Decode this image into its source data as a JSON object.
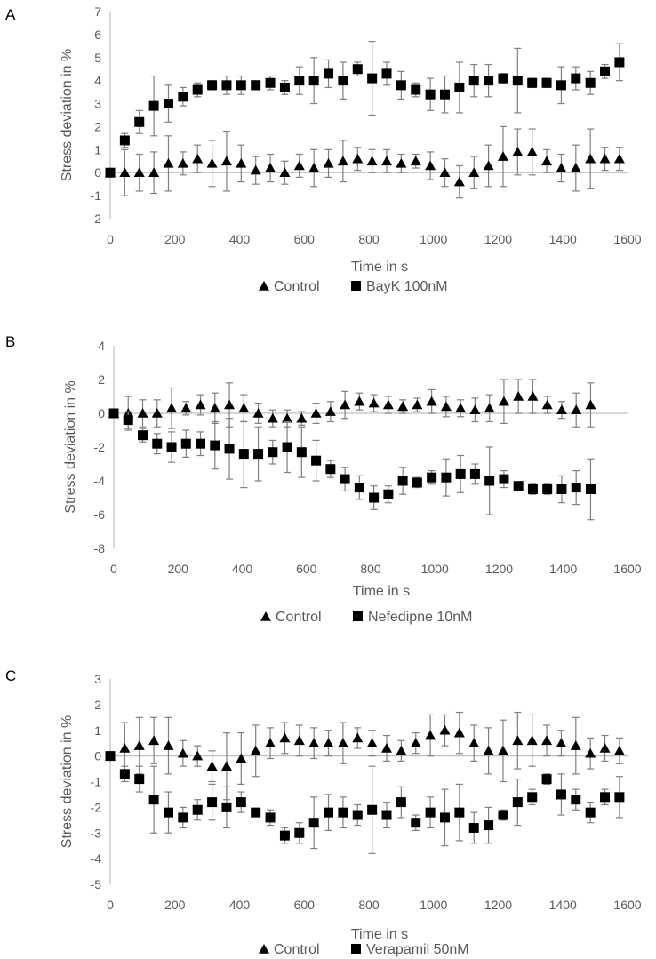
{
  "figure": {
    "panels": [
      {
        "letter": "A",
        "legend": {
          "control": "Control",
          "treatment": "BayK 100nM"
        }
      },
      {
        "letter": "B",
        "legend": {
          "control": "Control",
          "treatment": "Nefedipne 10nM"
        }
      },
      {
        "letter": "C",
        "legend": {
          "control": "Control",
          "treatment": "Verapamil 50nM"
        }
      }
    ]
  },
  "colors": {
    "marker": "#000000",
    "axis": "#bfbfbf",
    "text": "#595959",
    "error_bar": "#7f7f7f"
  },
  "chart_data": [
    {
      "type": "scatter",
      "panel": "A",
      "xlabel": "Time in s",
      "ylabel": "Stress deviation in %",
      "xlim": [
        0,
        1600
      ],
      "ylim": [
        -2,
        7
      ],
      "xticks": [
        0,
        200,
        400,
        600,
        800,
        1000,
        1200,
        1400,
        1600
      ],
      "yticks": [
        -2,
        -1,
        0,
        1,
        2,
        3,
        4,
        5,
        6,
        7
      ],
      "legend_position": "bottom",
      "series": [
        {
          "name": "Control",
          "marker": "triangle",
          "x": [
            0,
            45,
            90,
            135,
            180,
            225,
            270,
            315,
            360,
            405,
            450,
            495,
            540,
            585,
            630,
            675,
            720,
            765,
            810,
            855,
            900,
            945,
            990,
            1035,
            1080,
            1125,
            1170,
            1215,
            1260,
            1305,
            1350,
            1395,
            1440,
            1485,
            1530,
            1575
          ],
          "y": [
            0,
            0,
            0,
            0,
            0.4,
            0.4,
            0.6,
            0.4,
            0.5,
            0.4,
            0.1,
            0.2,
            0,
            0.3,
            0.2,
            0.4,
            0.5,
            0.6,
            0.5,
            0.5,
            0.4,
            0.5,
            0.3,
            0,
            -0.4,
            0,
            0.3,
            0.7,
            0.9,
            0.9,
            0.5,
            0.2,
            0.2,
            0.6,
            0.6,
            0.6
          ],
          "err": [
            0,
            1,
            0.8,
            0.9,
            1.2,
            0.5,
            0.6,
            1,
            1.3,
            0.8,
            0.6,
            0.6,
            0.5,
            0.5,
            0.8,
            0.6,
            0.9,
            0.5,
            0.5,
            0.5,
            0.4,
            0.3,
            0.6,
            0.6,
            0.7,
            0.7,
            0.9,
            1.3,
            1,
            1,
            0.5,
            0.6,
            1,
            1.3,
            0.5,
            0.5
          ]
        },
        {
          "name": "BayK 100nM",
          "marker": "square",
          "x": [
            0,
            45,
            90,
            135,
            180,
            225,
            270,
            315,
            360,
            405,
            450,
            495,
            540,
            585,
            630,
            675,
            720,
            765,
            810,
            855,
            900,
            945,
            990,
            1035,
            1080,
            1125,
            1170,
            1215,
            1260,
            1305,
            1350,
            1395,
            1440,
            1485,
            1530,
            1575
          ],
          "y": [
            0,
            1.4,
            2.2,
            2.9,
            3,
            3.3,
            3.6,
            3.8,
            3.8,
            3.8,
            3.8,
            3.9,
            3.7,
            4,
            4,
            4.3,
            4,
            4.5,
            4.1,
            4.3,
            3.8,
            3.6,
            3.4,
            3.4,
            3.7,
            4,
            4,
            4.1,
            4,
            3.9,
            3.9,
            3.8,
            4.1,
            3.9,
            4.4,
            4.8
          ],
          "err": [
            0,
            0.3,
            0.5,
            1.3,
            0.8,
            0.4,
            0.3,
            0.2,
            0.4,
            0.4,
            0.2,
            0.3,
            0.3,
            0.6,
            1,
            0.6,
            0.8,
            0.3,
            1.6,
            0.5,
            0.6,
            0.3,
            0.7,
            0.8,
            1.1,
            0.7,
            0.7,
            0.2,
            1.4,
            0.2,
            0.2,
            0.8,
            0.5,
            0.5,
            0.3,
            0.8
          ]
        }
      ]
    },
    {
      "type": "scatter",
      "panel": "B",
      "xlabel": "Time in s",
      "ylabel": "Stress deviation in %",
      "xlim": [
        0,
        1600
      ],
      "ylim": [
        -8,
        4
      ],
      "xticks": [
        0,
        200,
        400,
        600,
        800,
        1000,
        1200,
        1400,
        1600
      ],
      "yticks": [
        -8,
        -6,
        -4,
        -2,
        0,
        2,
        4
      ],
      "legend_position": "bottom",
      "series": [
        {
          "name": "Control",
          "marker": "triangle",
          "x": [
            0,
            45,
            90,
            135,
            180,
            225,
            270,
            315,
            360,
            405,
            450,
            495,
            540,
            585,
            630,
            675,
            720,
            765,
            810,
            855,
            900,
            945,
            990,
            1035,
            1080,
            1125,
            1170,
            1215,
            1260,
            1305,
            1350,
            1395,
            1440,
            1485
          ],
          "y": [
            0,
            0,
            0,
            0,
            0.3,
            0.3,
            0.5,
            0.3,
            0.5,
            0.3,
            0,
            -0.3,
            -0.3,
            -0.3,
            0,
            0.1,
            0.5,
            0.7,
            0.6,
            0.5,
            0.4,
            0.5,
            0.7,
            0.4,
            0.3,
            0.2,
            0.3,
            0.7,
            1,
            1,
            0.5,
            0.2,
            0.2,
            0.5
          ],
          "err": [
            0,
            1,
            0.8,
            0.8,
            1.2,
            0.4,
            0.6,
            0.9,
            1.3,
            0.8,
            0.6,
            0.5,
            0.5,
            0.4,
            0.6,
            0.6,
            0.8,
            0.5,
            0.5,
            0.5,
            0.4,
            0.4,
            0.7,
            0.6,
            0.5,
            0.7,
            0.8,
            1.3,
            1,
            1,
            0.5,
            0.5,
            1,
            1.3
          ]
        },
        {
          "name": "Nefedipne 10nM",
          "marker": "square",
          "x": [
            0,
            45,
            90,
            135,
            180,
            225,
            270,
            315,
            360,
            405,
            450,
            495,
            540,
            585,
            630,
            675,
            720,
            765,
            810,
            855,
            900,
            945,
            990,
            1035,
            1080,
            1125,
            1170,
            1215,
            1260,
            1305,
            1350,
            1395,
            1440,
            1485
          ],
          "y": [
            0,
            -0.4,
            -1.3,
            -1.8,
            -2,
            -1.8,
            -1.8,
            -1.9,
            -2.1,
            -2.4,
            -2.4,
            -2.3,
            -2,
            -2.3,
            -2.8,
            -3.3,
            -3.9,
            -4.4,
            -5,
            -4.8,
            -4,
            -4.1,
            -3.8,
            -3.8,
            -3.6,
            -3.6,
            -4,
            -3.9,
            -4.3,
            -4.5,
            -4.5,
            -4.5,
            -4.4,
            -4.5
          ],
          "err": [
            0,
            0.5,
            0.4,
            0.6,
            0.9,
            0.8,
            0.7,
            1.4,
            1.8,
            2,
            1.6,
            0.7,
            1.5,
            1.5,
            1.2,
            0.5,
            0.7,
            0.7,
            0.7,
            0.5,
            0.8,
            0.3,
            0.4,
            1.1,
            1.1,
            0.6,
            2,
            0.5,
            0.2,
            0.3,
            0.3,
            0.8,
            1,
            1.8
          ]
        }
      ]
    },
    {
      "type": "scatter",
      "panel": "C",
      "xlabel": "Time in s",
      "ylabel": "Stress deviation in %",
      "xlim": [
        0,
        1600
      ],
      "ylim": [
        -5,
        3
      ],
      "xticks": [
        0,
        200,
        400,
        600,
        800,
        1000,
        1200,
        1400,
        1600
      ],
      "yticks": [
        -5,
        -4,
        -3,
        -2,
        -1,
        0,
        1,
        2,
        3
      ],
      "legend_position": "bottom",
      "series": [
        {
          "name": "Control",
          "marker": "triangle",
          "x": [
            0,
            45,
            90,
            135,
            180,
            225,
            270,
            315,
            360,
            405,
            450,
            495,
            540,
            585,
            630,
            675,
            720,
            765,
            810,
            855,
            900,
            945,
            990,
            1035,
            1080,
            1125,
            1170,
            1215,
            1260,
            1305,
            1350,
            1395,
            1440,
            1485,
            1530,
            1575
          ],
          "y": [
            0,
            0.3,
            0.4,
            0.6,
            0.4,
            0.1,
            0,
            -0.4,
            -0.4,
            -0.1,
            0.2,
            0.5,
            0.7,
            0.6,
            0.5,
            0.5,
            0.5,
            0.7,
            0.5,
            0.3,
            0.2,
            0.5,
            0.8,
            1,
            0.9,
            0.5,
            0.2,
            0.2,
            0.6,
            0.6,
            0.6,
            0.5,
            0.4,
            0.1,
            0.3,
            0.2
          ],
          "err": [
            0,
            1,
            1.1,
            0.9,
            1.1,
            0.5,
            0.4,
            0.6,
            1.3,
            1,
            1,
            0.6,
            0.6,
            0.6,
            0.6,
            0.5,
            0.8,
            0.4,
            0.5,
            0.5,
            0.4,
            0.4,
            0.8,
            0.6,
            0.8,
            0.7,
            0.9,
            1.2,
            1.1,
            1,
            0.6,
            0.5,
            1.1,
            0.6,
            0.5,
            0.5
          ]
        },
        {
          "name": "Verapamil 50nM",
          "marker": "square",
          "x": [
            0,
            45,
            90,
            135,
            180,
            225,
            270,
            315,
            360,
            405,
            450,
            495,
            540,
            585,
            630,
            675,
            720,
            765,
            810,
            855,
            900,
            945,
            990,
            1035,
            1080,
            1125,
            1170,
            1215,
            1260,
            1305,
            1350,
            1395,
            1440,
            1485,
            1530,
            1575
          ],
          "y": [
            0,
            -0.7,
            -0.9,
            -1.7,
            -2.2,
            -2.4,
            -2.1,
            -1.8,
            -2,
            -1.8,
            -2.2,
            -2.4,
            -3.1,
            -3,
            -2.6,
            -2.2,
            -2.2,
            -2.3,
            -2.1,
            -2.3,
            -1.8,
            -2.6,
            -2.2,
            -2.4,
            -2.2,
            -2.8,
            -2.7,
            -2.3,
            -1.8,
            -1.6,
            -0.9,
            -1.5,
            -1.7,
            -2.2,
            -1.6,
            -1.6
          ],
          "err": [
            0,
            0.3,
            0.5,
            1.3,
            0.8,
            0.4,
            0.4,
            0.7,
            0.8,
            0.4,
            0.1,
            0.3,
            0.3,
            0.4,
            1,
            0.7,
            0.6,
            0.4,
            1.7,
            0.5,
            0.6,
            0.3,
            0.6,
            1.1,
            1.1,
            0.6,
            0.7,
            0.2,
            0.9,
            0.3,
            0.2,
            0.8,
            0.4,
            0.4,
            0.3,
            0.8
          ]
        }
      ]
    }
  ]
}
